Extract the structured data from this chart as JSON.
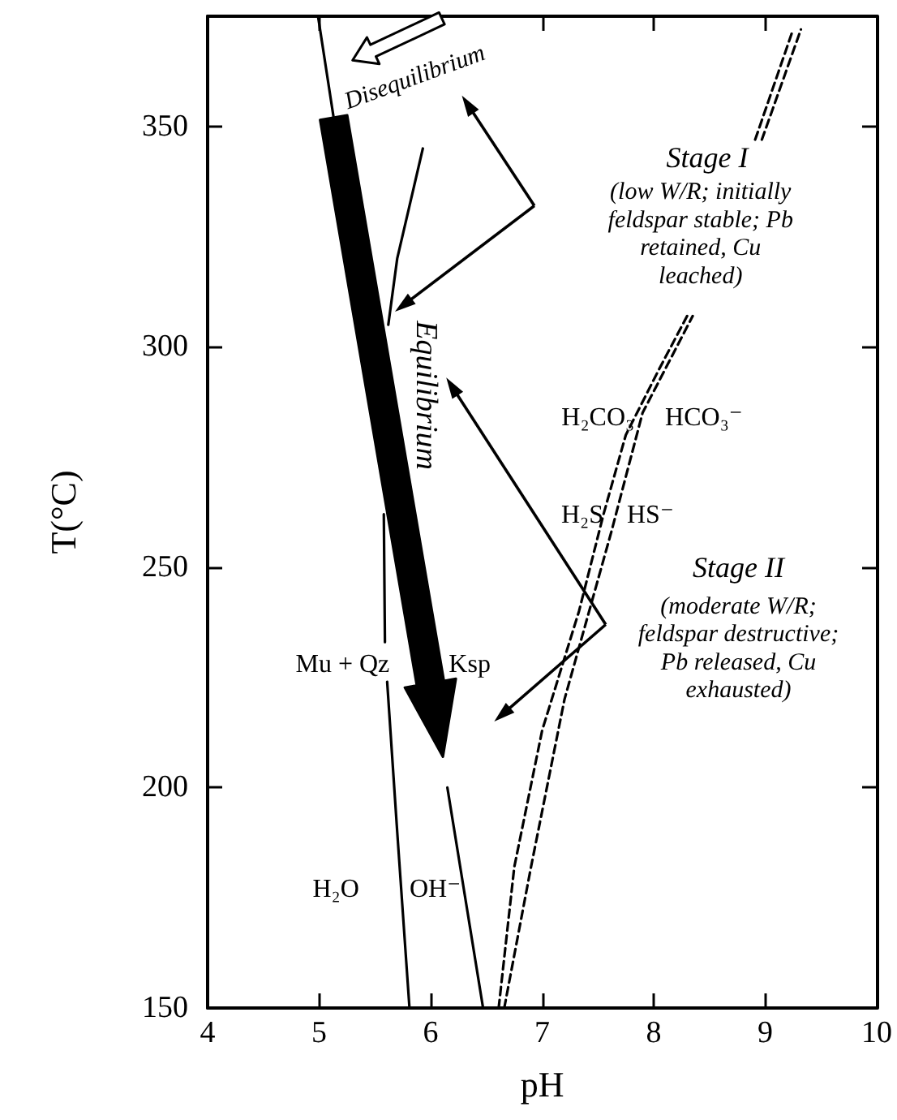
{
  "chart_data": {
    "type": "line",
    "xlabel": "pH",
    "ylabel": "T(°C)",
    "xlim": [
      4,
      10
    ],
    "ylim": [
      150,
      375
    ],
    "xticks": [
      4,
      5,
      6,
      7,
      8,
      9,
      10
    ],
    "yticks": [
      150,
      200,
      250,
      300,
      350
    ],
    "grid": false,
    "marker": "none",
    "series": [
      {
        "color": "#000000",
        "line_style": "solid",
        "x": [
          6.47,
          6.15,
          null,
          5.13,
          4.99
        ],
        "values": [
          150,
          200,
          null,
          352,
          375
        ]
      },
      {
        "color": "#000000",
        "line_style": "solid",
        "x": [
          5.81,
          5.7,
          5.61,
          null,
          5.59,
          5.58,
          null,
          5.62,
          5.7,
          5.93
        ],
        "values": [
          150,
          190,
          224,
          null,
          233,
          262,
          null,
          305,
          320,
          345
        ]
      },
      {
        "color": "#000000",
        "line_style": "dashed",
        "x": [
          6.61,
          6.75,
          7.0,
          7.33,
          7.55,
          7.75,
          8.05,
          8.3,
          null,
          8.91,
          9.25
        ],
        "values": [
          150,
          182,
          213,
          240,
          262,
          280,
          295,
          307,
          null,
          347,
          372
        ]
      },
      {
        "color": "#000000",
        "line_style": "dashed",
        "x": [
          6.66,
          6.9,
          7.2,
          7.62,
          7.9,
          8.35,
          null,
          8.97,
          9.32
        ],
        "values": [
          150,
          182,
          220,
          258,
          285,
          307,
          null,
          347,
          372
        ]
      }
    ],
    "annotations": [
      "Disequilibrium",
      "Equilibrium",
      "Stage I",
      "(low W/R; initially\nfeldspar stable; Pb\nretained, Cu\nleached)",
      "Stage II",
      "(moderate W/R;\nfeldspar destructive;\nPb released, Cu\nexhausted)",
      "H₂CO₃",
      "HCO₃⁻",
      "H₂S",
      "HS⁻",
      "Mu + Qz",
      "Ksp",
      "H₂O",
      "OH⁻"
    ]
  }
}
